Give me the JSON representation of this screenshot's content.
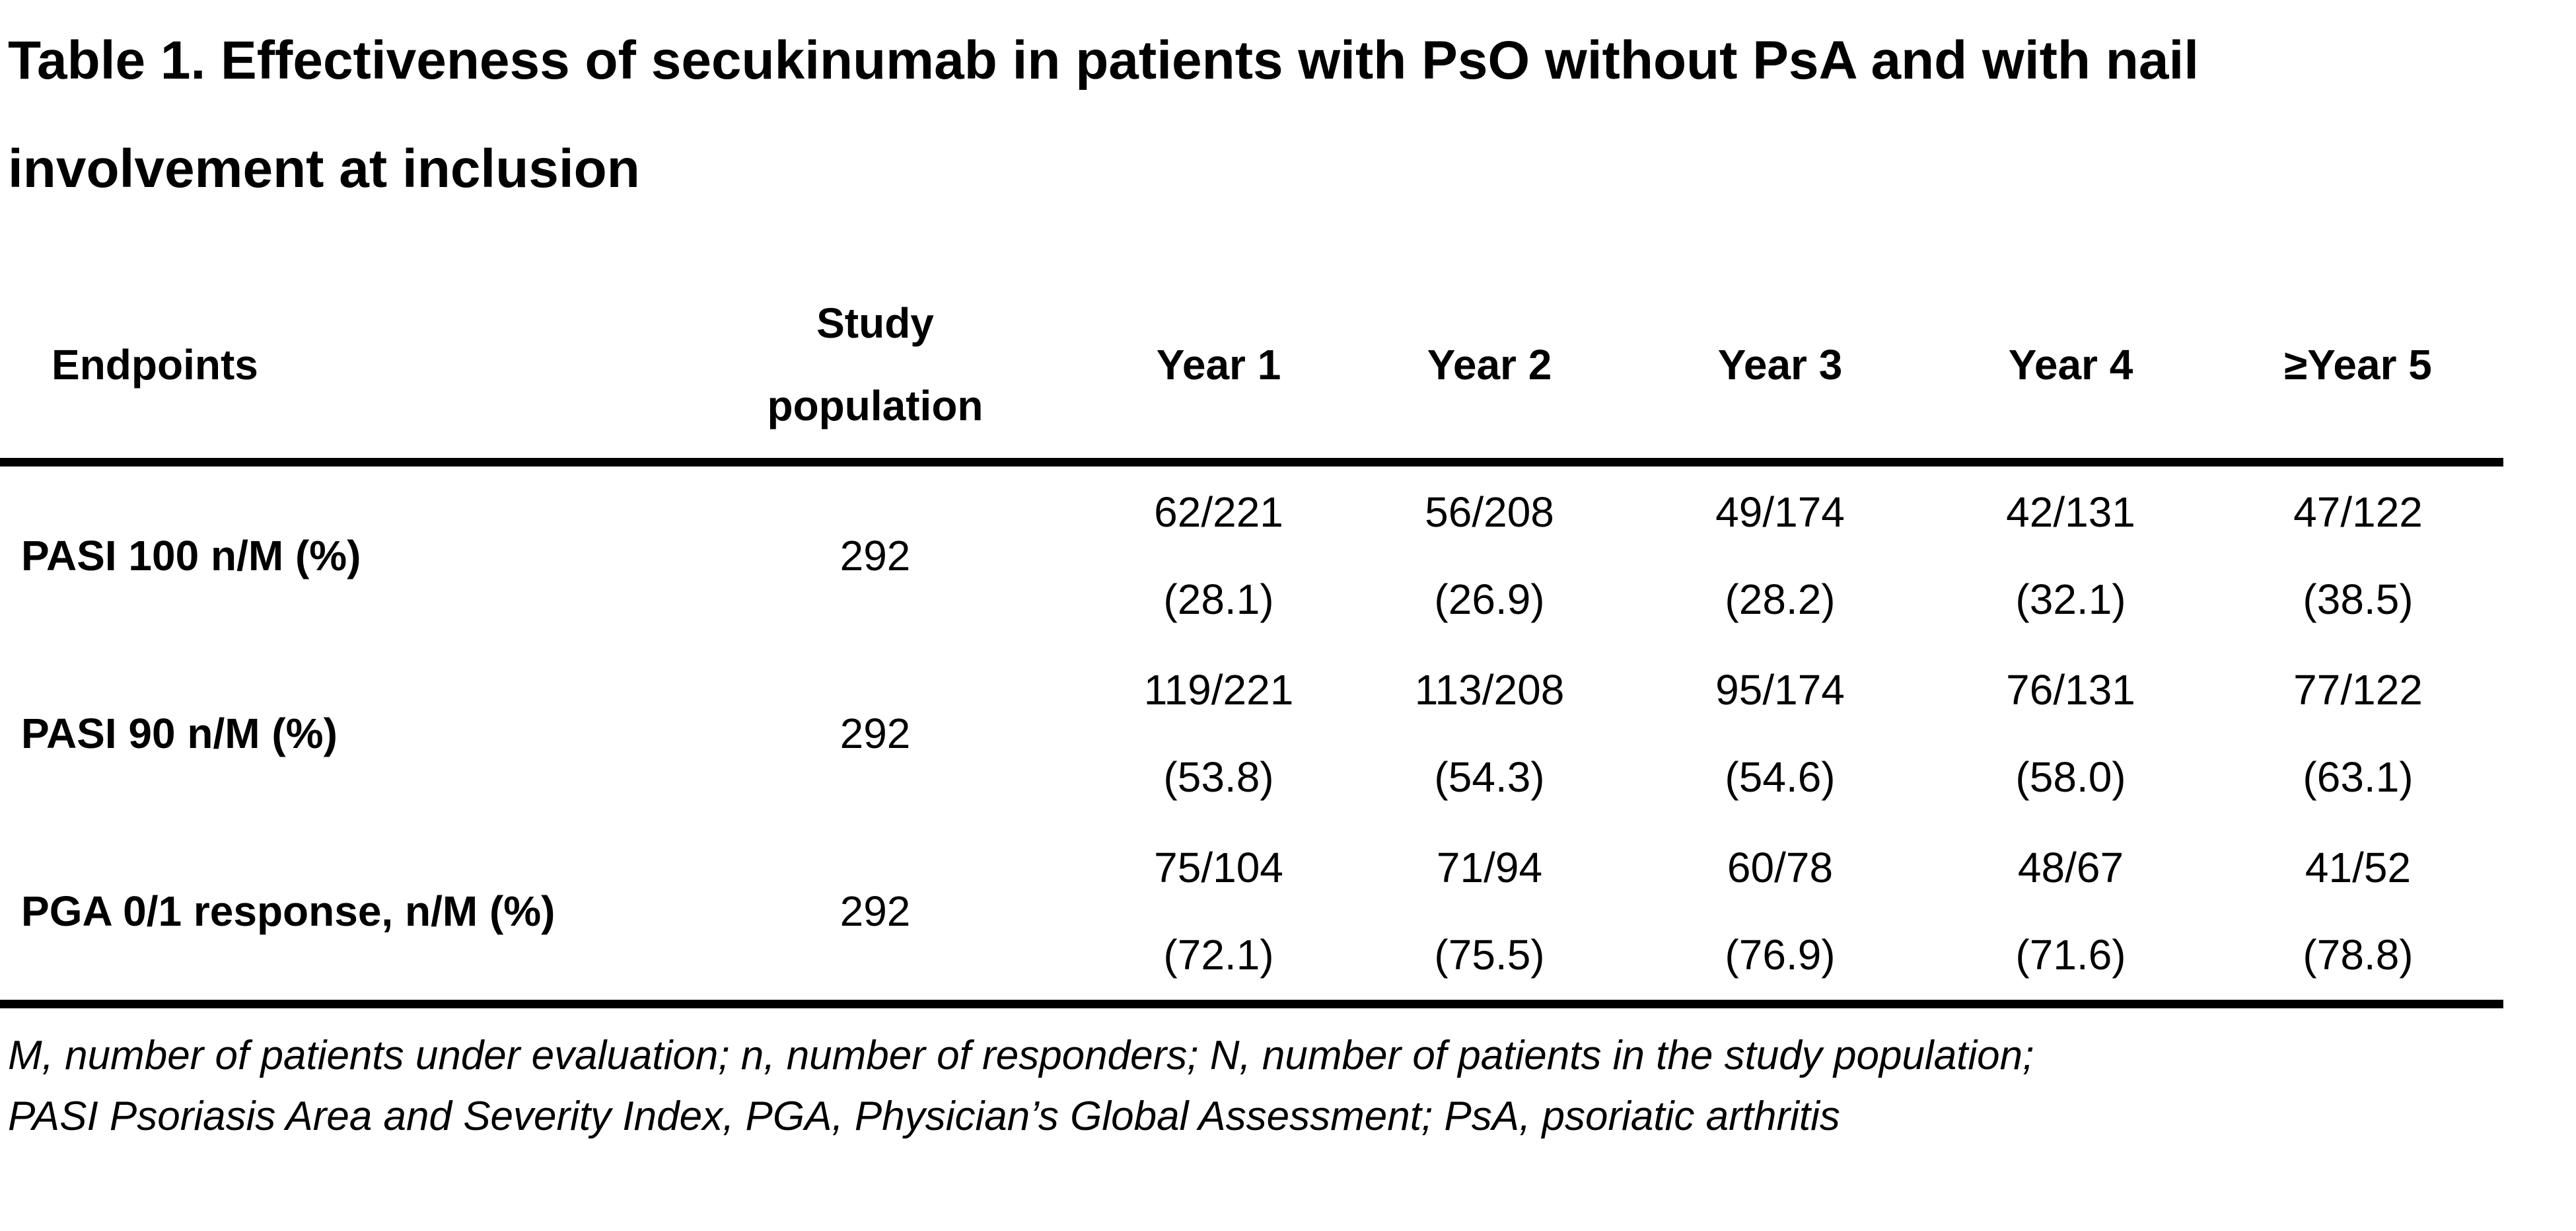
{
  "title": {
    "line1": "Table 1. Effectiveness of secukinumab in patients with PsO without PsA and with nail",
    "line2": "involvement at inclusion"
  },
  "table": {
    "columns": [
      "Endpoints",
      "Study population",
      "Year 1",
      "Year 2",
      "Year 3",
      "Year 4",
      "≥Year 5"
    ],
    "rows": [
      {
        "endpoint": "PASI 100 n/M (%)",
        "study_population": "292",
        "values": [
          {
            "frac": "62/221",
            "pct": "(28.1)"
          },
          {
            "frac": "56/208",
            "pct": "(26.9)"
          },
          {
            "frac": "49/174",
            "pct": "(28.2)"
          },
          {
            "frac": "42/131",
            "pct": "(32.1)"
          },
          {
            "frac": "47/122",
            "pct": "(38.5)"
          }
        ]
      },
      {
        "endpoint": "PASI 90 n/M (%)",
        "study_population": "292",
        "values": [
          {
            "frac": "119/221",
            "pct": "(53.8)"
          },
          {
            "frac": "113/208",
            "pct": "(54.3)"
          },
          {
            "frac": "95/174",
            "pct": "(54.6)"
          },
          {
            "frac": "76/131",
            "pct": "(58.0)"
          },
          {
            "frac": "77/122",
            "pct": "(63.1)"
          }
        ]
      },
      {
        "endpoint": "PGA 0/1 response, n/M (%)",
        "study_population": "292",
        "values": [
          {
            "frac": "75/104",
            "pct": "(72.1)"
          },
          {
            "frac": "71/94",
            "pct": "(75.5)"
          },
          {
            "frac": "60/78",
            "pct": "(76.9)"
          },
          {
            "frac": "48/67",
            "pct": "(71.6)"
          },
          {
            "frac": "41/52",
            "pct": "(78.8)"
          }
        ]
      }
    ]
  },
  "footnote": {
    "line1": "M, number of patients under evaluation; n, number of responders; N, number of patients in the study population;",
    "line2": "PASI Psoriasis Area and Severity Index, PGA, Physician’s Global Assessment; PsA, psoriatic arthritis"
  },
  "colors": {
    "text": "#000000",
    "background": "#ffffff",
    "rule": "#000000"
  }
}
